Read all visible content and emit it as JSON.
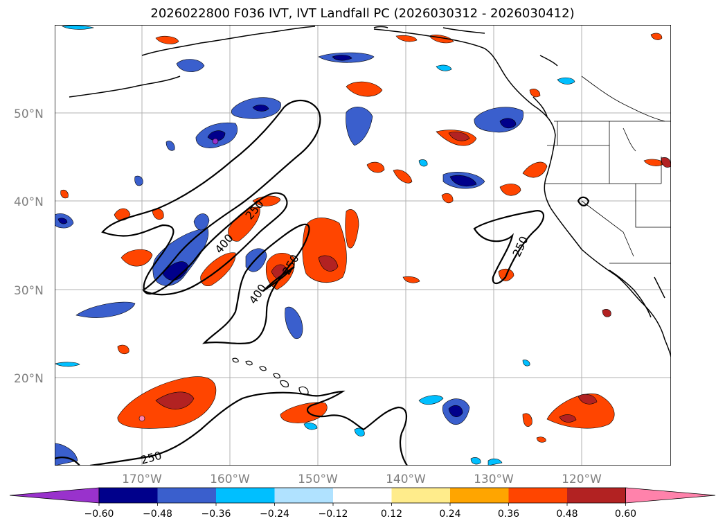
{
  "title": "2026022800 F036 IVT, IVT Landfall PC (2026030312 - 2026030412)",
  "map": {
    "lat_labels": [
      "50°N",
      "40°N",
      "30°N",
      "20°N"
    ],
    "lon_labels": [
      "170°W",
      "160°W",
      "150°W",
      "140°W",
      "130°W",
      "120°W"
    ],
    "contour_labels": [
      "250",
      "400",
      "250",
      "400",
      "250",
      "250"
    ]
  },
  "colorbar": {
    "ticks": [
      "−0.60",
      "−0.48",
      "−0.36",
      "−0.24",
      "−0.12",
      "0.12",
      "0.24",
      "0.36",
      "0.48",
      "0.60"
    ],
    "colors": {
      "under": "#9932CC",
      "bins": [
        "#00008B",
        "#3A5FCD",
        "#00BFFF",
        "#B0E2FF",
        "#FFFFFF",
        "#FFEC8B",
        "#FFA500",
        "#FF4500",
        "#B22222"
      ],
      "over": "#FF82AB"
    }
  }
}
